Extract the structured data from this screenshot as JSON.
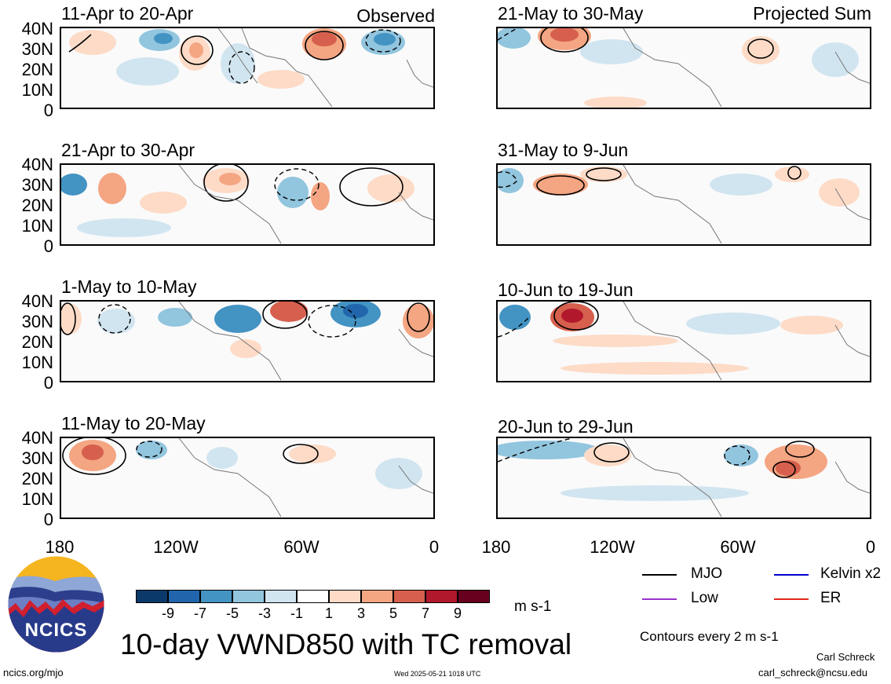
{
  "header": {
    "observed_label": "Observed",
    "projected_label": "Projected Sum"
  },
  "panels": [
    {
      "title": "11-Apr to 20-Apr"
    },
    {
      "title": "21-May to 30-May"
    },
    {
      "title": "21-Apr to 30-Apr"
    },
    {
      "title": "31-May to 9-Jun"
    },
    {
      "title": "1-May to 10-May"
    },
    {
      "title": "10-Jun to 19-Jun"
    },
    {
      "title": "11-May to 20-May"
    },
    {
      "title": "20-Jun to 29-Jun"
    }
  ],
  "lat_labels": [
    "40N",
    "30N",
    "20N",
    "10N",
    "0"
  ],
  "lon_labels": [
    "180",
    "120W",
    "60W",
    "0"
  ],
  "colorbar": {
    "colors": [
      "#0b3a6a",
      "#2166ac",
      "#4393c3",
      "#92c5de",
      "#d1e5f0",
      "#ffffff",
      "#fddbc7",
      "#f4a582",
      "#d6604d",
      "#b2182b",
      "#67001f"
    ],
    "ticks": [
      "-9",
      "-7",
      "-5",
      "-3",
      "-1",
      "1",
      "3",
      "5",
      "7",
      "9"
    ],
    "units": "m s-1"
  },
  "legend": {
    "items": [
      {
        "label": "MJO",
        "color": "#000000"
      },
      {
        "label": "Kelvin x2",
        "color": "#0000cc"
      },
      {
        "label": "Low",
        "color": "#9933cc"
      },
      {
        "label": "ER",
        "color": "#e3261c"
      }
    ],
    "contour_note": "Contours every 2 m s-1"
  },
  "logo": {
    "text": "NCICS"
  },
  "title": "10-day VWND850 with TC removal",
  "footer": {
    "url": "ncics.org/mjo",
    "timestamp": "Wed 2025-05-21 1018 UTC",
    "author": "Carl Schreck",
    "email": "carl_schreck@ncsu.edu"
  }
}
